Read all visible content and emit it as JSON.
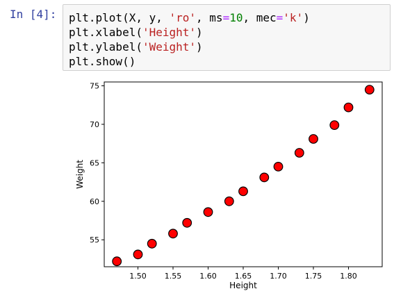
{
  "prompt": "In [4]:",
  "code": {
    "line1": {
      "a": "plt.plot(X, y, ",
      "b": "'ro'",
      "c": ", ms",
      "d": "=",
      "e": "10",
      "f": ", mec",
      "g": "=",
      "h": "'k'",
      "i": ")"
    },
    "line2": {
      "a": "plt.xlabel(",
      "b": "'Height'",
      "c": ")"
    },
    "line3": {
      "a": "plt.ylabel(",
      "b": "'Weight'",
      "c": ")"
    },
    "line4": {
      "a": "plt.show()"
    }
  },
  "chart_data": {
    "type": "scatter",
    "xlabel": "Height",
    "ylabel": "Weight",
    "xlim": [
      1.452,
      1.848
    ],
    "ylim": [
      51.5,
      75.5
    ],
    "xticks": [
      1.5,
      1.55,
      1.6,
      1.65,
      1.7,
      1.75,
      1.8
    ],
    "xtick_labels": [
      "1.50",
      "1.55",
      "1.60",
      "1.65",
      "1.70",
      "1.75",
      "1.80"
    ],
    "yticks": [
      55,
      60,
      65,
      70,
      75
    ],
    "ytick_labels": [
      "55",
      "60",
      "65",
      "70",
      "75"
    ],
    "marker_color": "#ff0000",
    "marker_edge_color": "#000000",
    "x": [
      1.47,
      1.5,
      1.52,
      1.55,
      1.57,
      1.6,
      1.63,
      1.65,
      1.68,
      1.7,
      1.73,
      1.75,
      1.78,
      1.8,
      1.83
    ],
    "y": [
      52.2,
      53.1,
      54.5,
      55.8,
      57.2,
      58.6,
      60.0,
      61.3,
      63.1,
      64.5,
      66.3,
      68.1,
      69.9,
      72.2,
      74.5
    ]
  }
}
